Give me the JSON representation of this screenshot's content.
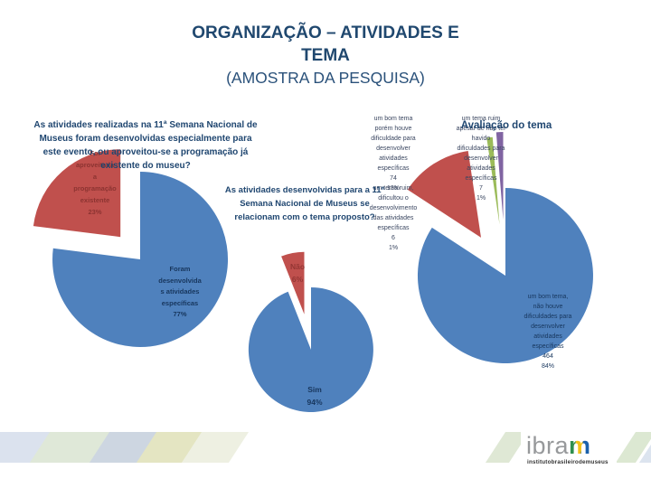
{
  "slide": {
    "title": {
      "line1": "ORGANIZAÇÃO – ATIVIDADES E",
      "line2": "TEMA",
      "line3": "(AMOSTRA DA PESQUISA)"
    }
  },
  "questions": {
    "left": "As atividades realizadas na 11ª Semana Nacional de\nMuseus foram desenvolvidas especialmente para\neste evento, ou aproveitou-se a programação já\nexistente do museu?",
    "middle": "As atividades desenvolvidas para a 11ª\nSemana Nacional de Museus se\nrelacionam com o tema proposto?"
  },
  "colors": {
    "blue": "#4F81BD",
    "red": "#C0504D",
    "green": "#9BBB59",
    "purple": "#8064A2",
    "heading": "#1F4670"
  },
  "chart_data": [
    {
      "type": "pie",
      "question": "As atividades realizadas na 11ª Semana Nacional de Museus foram desenvolvidas especialmente para este evento, ou aproveitou-se a programação já existente do museu?",
      "slices": [
        {
          "label": "Foram desenvolvidas atividades específicas",
          "value": 77,
          "pct": "77%",
          "color": "#4F81BD",
          "display": "Foram\ndesenvolvida\ns atividades\nespecíficas\n77%"
        },
        {
          "label": "Foi aproveitada a programação existente",
          "value": 23,
          "pct": "23%",
          "color": "#C0504D",
          "display": "Foi\naproveitada\na\nprogramação\nexistente\n23%"
        }
      ]
    },
    {
      "type": "pie",
      "question": "As atividades desenvolvidas para a 11ª Semana Nacional de Museus se relacionam com o tema proposto?",
      "slices": [
        {
          "label": "Sim",
          "value": 94,
          "pct": "94%",
          "color": "#4F81BD",
          "display": "Sim\n94%"
        },
        {
          "label": "Não",
          "value": 6,
          "pct": "6%",
          "color": "#C0504D",
          "display": "Não\n6%"
        }
      ]
    },
    {
      "type": "pie",
      "title": "Avaliação do tema",
      "slices": [
        {
          "label": "um bom tema, não houve dificuldades para desenvolver atividades específicas",
          "value": 464,
          "pct": "84%",
          "color": "#4F81BD",
          "display": "um bom tema,\nnão houve\ndificuldades para\ndesenvolver\natividades\nespecíficas\n464\n84%"
        },
        {
          "label": "um bom tema porém houve dificuldade para desenvolver atividades específicas",
          "value": 74,
          "pct": "13%",
          "color": "#C0504D",
          "display": "um bom tema\nporém houve\ndificuldade para\ndesenvolver\natividades\nespecíficas\n74\n13%"
        },
        {
          "label": "um tema ruim, dificultou o desenvolvimento das atividades específicas",
          "value": 6,
          "pct": "1%",
          "color": "#9BBB59",
          "display": "um tema ruim,\ndificultou o\ndesenvolvimento\ndas atividades\nespecíficas\n6\n1%"
        },
        {
          "label": "um tema ruim apesar de não ter havido dificuldades para desenvolver atividades específicas",
          "value": 7,
          "pct": "1%",
          "color": "#8064A2",
          "display": "um tema ruim\napesar de não ter\nhavido\ndificuldades para\ndesenvolver\natividades\nespecíficas\n7\n1%"
        }
      ]
    }
  ],
  "logo": {
    "brand": "ibra",
    "brand_m": "m",
    "subtitle": "institutobrasileirodemuseus"
  }
}
